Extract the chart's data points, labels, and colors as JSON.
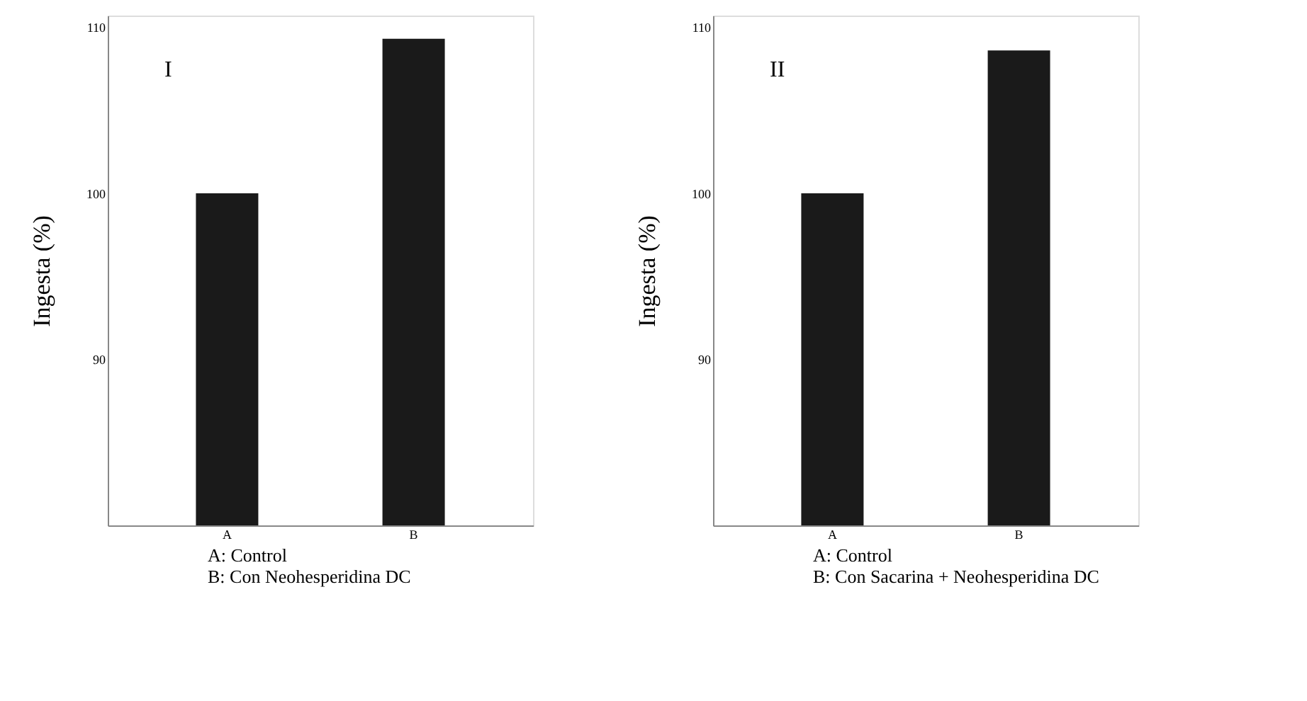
{
  "chart_data": [
    {
      "type": "bar",
      "categories": [
        "A",
        "B"
      ],
      "values": [
        100,
        109.3
      ],
      "color": "#1a1a1a",
      "ylabel": "Ingesta (%)",
      "ylim": [
        80,
        110.7
      ],
      "yticks": [
        90,
        100,
        110
      ],
      "grid": false,
      "annotations": [
        "I",
        "A: Control",
        "B: Con Neohesperidina DC"
      ]
    },
    {
      "type": "bar",
      "categories": [
        "A",
        "B"
      ],
      "values": [
        100,
        108.6
      ],
      "color": "#1a1a1a",
      "ylabel": "Ingesta (%)",
      "ylim": [
        80,
        110.7
      ],
      "yticks": [
        90,
        100,
        110
      ],
      "grid": false,
      "annotations": [
        "II",
        "A: Control",
        "B: Con Sacarina + Neohesperidina DC"
      ]
    }
  ]
}
